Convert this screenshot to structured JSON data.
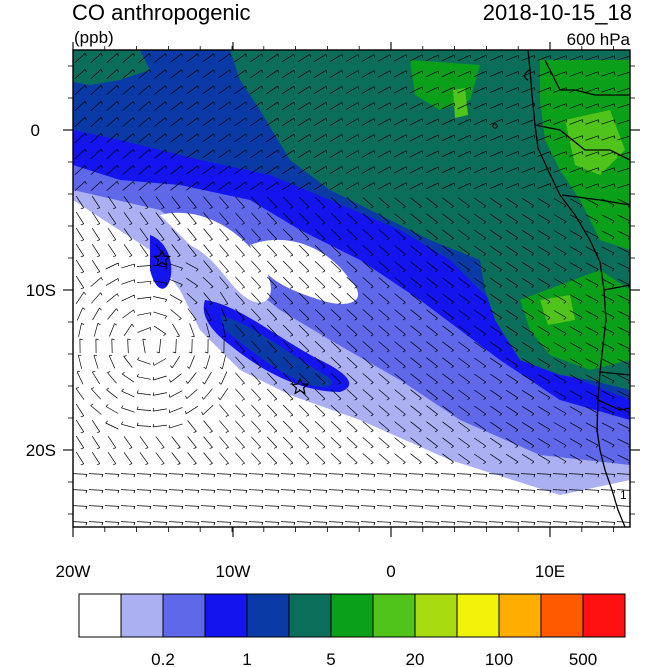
{
  "header": {
    "title": "CO anthropogenic",
    "units": "(ppb)",
    "datetime": "2018-10-15_18",
    "level": "600 hPa"
  },
  "map": {
    "lon_ticks": [
      "20W",
      "10W",
      "0",
      "10E"
    ],
    "lat_ticks": [
      "0",
      "10S",
      "20S"
    ],
    "markers": [
      {
        "type": "star",
        "label": ""
      },
      {
        "type": "star",
        "label": ""
      }
    ],
    "contour_label": "1"
  },
  "colorbar": {
    "colors": [
      "#ffffff",
      "#aab0f2",
      "#6068ea",
      "#1414ee",
      "#0a3aa6",
      "#0b6e5a",
      "#0aa01a",
      "#50c41a",
      "#a8dc10",
      "#f2f20a",
      "#ffae00",
      "#ff5a00",
      "#ff1010"
    ],
    "labels": [
      "0.2",
      "1",
      "5",
      "20",
      "100",
      "500"
    ]
  }
}
